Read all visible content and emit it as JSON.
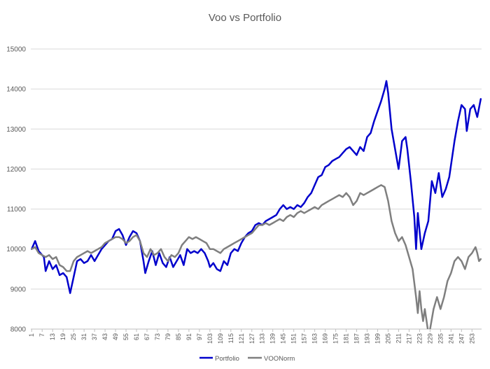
{
  "chart_data": {
    "type": "line",
    "title": "Voo vs Portfolio",
    "xlabel": "",
    "ylabel": "",
    "ylim": [
      8000,
      15000
    ],
    "yticks": [
      8000,
      9000,
      10000,
      11000,
      12000,
      13000,
      14000,
      15000
    ],
    "x_count": 258,
    "x_tick_labels": [
      1,
      7,
      13,
      19,
      25,
      31,
      37,
      43,
      49,
      55,
      61,
      67,
      73,
      79,
      85,
      91,
      97,
      103,
      109,
      115,
      121,
      127,
      133,
      139,
      145,
      151,
      157,
      163,
      169,
      175,
      181,
      187,
      193,
      199,
      205,
      211,
      217,
      223,
      229,
      235,
      241,
      247,
      253
    ],
    "grid": "horizontal",
    "legend": "bottom",
    "series": [
      {
        "name": "Portfolio",
        "color": "#0000CC",
        "points": [
          [
            1,
            10000
          ],
          [
            3,
            10200
          ],
          [
            5,
            9950
          ],
          [
            8,
            9800
          ],
          [
            9,
            9450
          ],
          [
            11,
            9700
          ],
          [
            13,
            9500
          ],
          [
            15,
            9600
          ],
          [
            17,
            9350
          ],
          [
            19,
            9400
          ],
          [
            21,
            9300
          ],
          [
            23,
            8900
          ],
          [
            25,
            9300
          ],
          [
            27,
            9700
          ],
          [
            29,
            9750
          ],
          [
            31,
            9650
          ],
          [
            33,
            9700
          ],
          [
            35,
            9850
          ],
          [
            37,
            9700
          ],
          [
            39,
            9850
          ],
          [
            41,
            10000
          ],
          [
            43,
            10100
          ],
          [
            45,
            10200
          ],
          [
            47,
            10250
          ],
          [
            49,
            10450
          ],
          [
            51,
            10500
          ],
          [
            53,
            10350
          ],
          [
            55,
            10100
          ],
          [
            57,
            10300
          ],
          [
            59,
            10450
          ],
          [
            61,
            10400
          ],
          [
            63,
            10200
          ],
          [
            65,
            9700
          ],
          [
            66,
            9400
          ],
          [
            68,
            9700
          ],
          [
            70,
            9950
          ],
          [
            72,
            9600
          ],
          [
            74,
            9900
          ],
          [
            76,
            9650
          ],
          [
            78,
            9550
          ],
          [
            80,
            9800
          ],
          [
            82,
            9550
          ],
          [
            84,
            9700
          ],
          [
            86,
            9850
          ],
          [
            88,
            9600
          ],
          [
            90,
            10000
          ],
          [
            92,
            9900
          ],
          [
            94,
            9950
          ],
          [
            96,
            9900
          ],
          [
            98,
            10000
          ],
          [
            100,
            9900
          ],
          [
            102,
            9700
          ],
          [
            103,
            9550
          ],
          [
            105,
            9650
          ],
          [
            107,
            9500
          ],
          [
            109,
            9450
          ],
          [
            111,
            9700
          ],
          [
            113,
            9600
          ],
          [
            115,
            9900
          ],
          [
            117,
            10000
          ],
          [
            119,
            9950
          ],
          [
            121,
            10150
          ],
          [
            123,
            10300
          ],
          [
            125,
            10400
          ],
          [
            127,
            10450
          ],
          [
            129,
            10600
          ],
          [
            131,
            10650
          ],
          [
            133,
            10600
          ],
          [
            135,
            10700
          ],
          [
            137,
            10750
          ],
          [
            139,
            10800
          ],
          [
            141,
            10850
          ],
          [
            143,
            11000
          ],
          [
            145,
            11100
          ],
          [
            147,
            11000
          ],
          [
            149,
            11050
          ],
          [
            151,
            11000
          ],
          [
            153,
            11100
          ],
          [
            155,
            11050
          ],
          [
            157,
            11150
          ],
          [
            159,
            11300
          ],
          [
            161,
            11400
          ],
          [
            163,
            11600
          ],
          [
            165,
            11800
          ],
          [
            167,
            11850
          ],
          [
            169,
            12050
          ],
          [
            171,
            12100
          ],
          [
            173,
            12200
          ],
          [
            175,
            12250
          ],
          [
            177,
            12300
          ],
          [
            179,
            12400
          ],
          [
            181,
            12500
          ],
          [
            183,
            12550
          ],
          [
            185,
            12450
          ],
          [
            187,
            12350
          ],
          [
            189,
            12550
          ],
          [
            191,
            12450
          ],
          [
            193,
            12800
          ],
          [
            195,
            12900
          ],
          [
            197,
            13200
          ],
          [
            199,
            13450
          ],
          [
            201,
            13700
          ],
          [
            203,
            14000
          ],
          [
            204,
            14200
          ],
          [
            205,
            13900
          ],
          [
            207,
            13000
          ],
          [
            209,
            12500
          ],
          [
            211,
            12000
          ],
          [
            213,
            12700
          ],
          [
            215,
            12800
          ],
          [
            216,
            12500
          ],
          [
            218,
            11700
          ],
          [
            220,
            10800
          ],
          [
            221,
            10000
          ],
          [
            222,
            10900
          ],
          [
            224,
            10000
          ],
          [
            226,
            10400
          ],
          [
            228,
            10700
          ],
          [
            230,
            11700
          ],
          [
            232,
            11400
          ],
          [
            234,
            11900
          ],
          [
            236,
            11300
          ],
          [
            238,
            11500
          ],
          [
            240,
            11800
          ],
          [
            241,
            12100
          ],
          [
            243,
            12700
          ],
          [
            245,
            13200
          ],
          [
            247,
            13600
          ],
          [
            249,
            13500
          ],
          [
            250,
            12950
          ],
          [
            252,
            13500
          ],
          [
            254,
            13600
          ],
          [
            256,
            13300
          ],
          [
            258,
            13750
          ]
        ]
      },
      {
        "name": "VOONorm",
        "color": "#7F7F7F",
        "points": [
          [
            1,
            10000
          ],
          [
            3,
            10050
          ],
          [
            5,
            9900
          ],
          [
            7,
            9850
          ],
          [
            9,
            9800
          ],
          [
            11,
            9850
          ],
          [
            13,
            9750
          ],
          [
            15,
            9800
          ],
          [
            17,
            9600
          ],
          [
            19,
            9550
          ],
          [
            21,
            9450
          ],
          [
            23,
            9450
          ],
          [
            25,
            9700
          ],
          [
            27,
            9800
          ],
          [
            29,
            9850
          ],
          [
            31,
            9900
          ],
          [
            33,
            9950
          ],
          [
            35,
            9900
          ],
          [
            37,
            9950
          ],
          [
            39,
            10000
          ],
          [
            41,
            10050
          ],
          [
            43,
            10150
          ],
          [
            45,
            10200
          ],
          [
            47,
            10250
          ],
          [
            49,
            10300
          ],
          [
            51,
            10300
          ],
          [
            53,
            10250
          ],
          [
            55,
            10150
          ],
          [
            57,
            10200
          ],
          [
            59,
            10300
          ],
          [
            61,
            10350
          ],
          [
            63,
            10200
          ],
          [
            65,
            9900
          ],
          [
            67,
            9800
          ],
          [
            69,
            10000
          ],
          [
            71,
            9850
          ],
          [
            73,
            9900
          ],
          [
            75,
            10000
          ],
          [
            77,
            9800
          ],
          [
            79,
            9700
          ],
          [
            81,
            9850
          ],
          [
            83,
            9800
          ],
          [
            85,
            9900
          ],
          [
            87,
            10100
          ],
          [
            89,
            10200
          ],
          [
            91,
            10300
          ],
          [
            93,
            10250
          ],
          [
            95,
            10300
          ],
          [
            97,
            10250
          ],
          [
            99,
            10200
          ],
          [
            101,
            10150
          ],
          [
            103,
            10000
          ],
          [
            105,
            10000
          ],
          [
            107,
            9950
          ],
          [
            109,
            9900
          ],
          [
            111,
            10000
          ],
          [
            113,
            10050
          ],
          [
            115,
            10100
          ],
          [
            117,
            10150
          ],
          [
            119,
            10200
          ],
          [
            121,
            10250
          ],
          [
            123,
            10300
          ],
          [
            125,
            10350
          ],
          [
            127,
            10400
          ],
          [
            129,
            10500
          ],
          [
            131,
            10600
          ],
          [
            133,
            10600
          ],
          [
            135,
            10650
          ],
          [
            137,
            10600
          ],
          [
            139,
            10650
          ],
          [
            141,
            10700
          ],
          [
            143,
            10750
          ],
          [
            145,
            10700
          ],
          [
            147,
            10800
          ],
          [
            149,
            10850
          ],
          [
            151,
            10800
          ],
          [
            153,
            10900
          ],
          [
            155,
            10950
          ],
          [
            157,
            10900
          ],
          [
            159,
            10950
          ],
          [
            161,
            11000
          ],
          [
            163,
            11050
          ],
          [
            165,
            11000
          ],
          [
            167,
            11100
          ],
          [
            169,
            11150
          ],
          [
            171,
            11200
          ],
          [
            173,
            11250
          ],
          [
            175,
            11300
          ],
          [
            177,
            11350
          ],
          [
            179,
            11300
          ],
          [
            181,
            11400
          ],
          [
            183,
            11300
          ],
          [
            185,
            11100
          ],
          [
            187,
            11200
          ],
          [
            189,
            11400
          ],
          [
            191,
            11350
          ],
          [
            193,
            11400
          ],
          [
            195,
            11450
          ],
          [
            197,
            11500
          ],
          [
            199,
            11550
          ],
          [
            201,
            11600
          ],
          [
            203,
            11550
          ],
          [
            205,
            11200
          ],
          [
            207,
            10700
          ],
          [
            209,
            10400
          ],
          [
            211,
            10200
          ],
          [
            213,
            10300
          ],
          [
            215,
            10100
          ],
          [
            217,
            9800
          ],
          [
            219,
            9500
          ],
          [
            221,
            8800
          ],
          [
            222,
            8400
          ],
          [
            223,
            8950
          ],
          [
            224,
            8500
          ],
          [
            225,
            8200
          ],
          [
            226,
            8500
          ],
          [
            227,
            8200
          ],
          [
            228,
            7900
          ],
          [
            229,
            8000
          ],
          [
            231,
            8500
          ],
          [
            233,
            8800
          ],
          [
            235,
            8500
          ],
          [
            237,
            8800
          ],
          [
            239,
            9200
          ],
          [
            241,
            9400
          ],
          [
            243,
            9700
          ],
          [
            245,
            9800
          ],
          [
            247,
            9700
          ],
          [
            249,
            9500
          ],
          [
            251,
            9800
          ],
          [
            253,
            9900
          ],
          [
            255,
            10050
          ],
          [
            256,
            9900
          ],
          [
            257,
            9700
          ],
          [
            258,
            9750
          ]
        ]
      }
    ]
  }
}
